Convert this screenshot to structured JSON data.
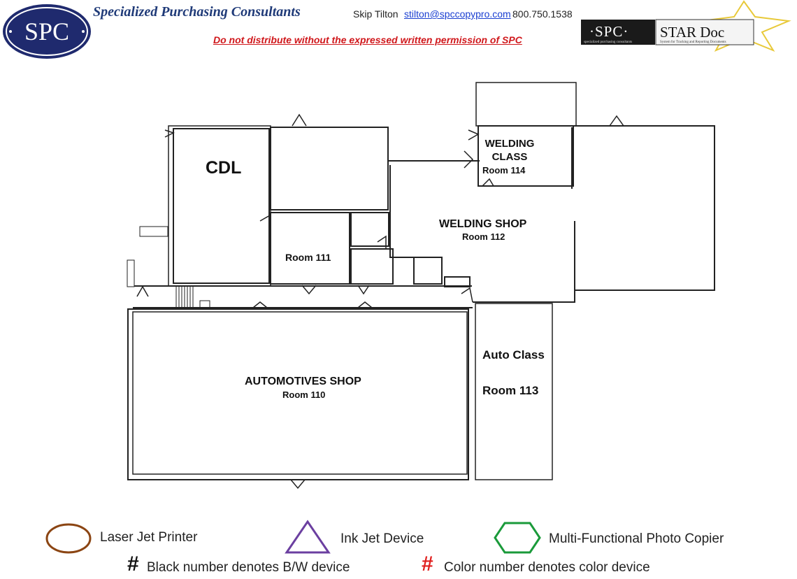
{
  "header": {
    "logo_text": "SPC",
    "company_name": "Specialized Purchasing Consultants",
    "contact_name": "Skip Tilton",
    "contact_email": "stilton@spccopypro.com",
    "contact_phone": "800.750.1538",
    "notice": "Do not distribute without the expressed written permission of SPC",
    "star_logo_spc": "·SPC·",
    "star_logo_title": "STAR Doc",
    "star_logo_spc_sub": "specialized purchasing consultants",
    "star_logo_subtitle": "System for Tracking and Reporting Documents"
  },
  "rooms": {
    "cdl": "CDL",
    "welding_class": "WELDING CLASS",
    "welding_class_room": "Room 114",
    "welding_shop": "WELDING SHOP",
    "welding_shop_room": "Room 112",
    "room_111": "Room 111",
    "auto_class": "Auto Class",
    "auto_class_room": "Room 113",
    "automotives_shop": "AUTOMOTIVES SHOP",
    "automotives_shop_room": "Room 110"
  },
  "legend": {
    "laser": "Laser Jet Printer",
    "inkjet": "Ink Jet Device",
    "mfp": "Multi-Functional Photo Copier",
    "hash_symbol": "#",
    "bw_note": "Black number denotes B/W device",
    "color_note": "Color number denotes color device",
    "colors": {
      "laser": "#8b4513",
      "inkjet": "#6b3fa0",
      "mfp": "#1a9a3a",
      "color_number": "#e0201f"
    }
  }
}
